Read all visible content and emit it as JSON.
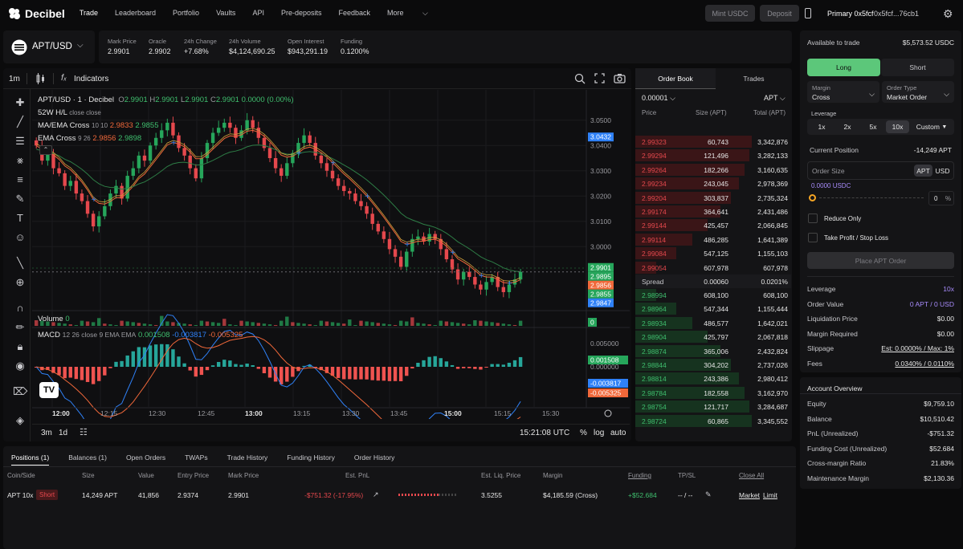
{
  "brand": {
    "name": "Decibel"
  },
  "nav": {
    "items": [
      "Trade",
      "Leaderboard",
      "Portfolio",
      "Vaults",
      "API",
      "Pre-deposits",
      "Feedback",
      "More"
    ]
  },
  "header": {
    "mint_label": "Mint USDC",
    "deposit_label": "Deposit",
    "account_label": "Primary 0x5fcf",
    "account_addr": "0x5fcf...76cb1"
  },
  "market": {
    "pair": "APT/USD",
    "stats": [
      {
        "label": "Mark Price",
        "value": "2.9901"
      },
      {
        "label": "Oracle",
        "value": "2.9902"
      },
      {
        "label": "24h Change",
        "value": "+7.68%"
      },
      {
        "label": "24h Volume",
        "value": "$4,124,690.25"
      },
      {
        "label": "Open Interest",
        "value": "$943,291.19"
      },
      {
        "label": "Funding",
        "value": "0.1200%"
      }
    ]
  },
  "chart_toolbar": {
    "interval": "1m",
    "indicators_label": "Indicators"
  },
  "chart": {
    "legend_title": "APT/USD · 1 · Decibel",
    "ohlc": {
      "o": "2.9901",
      "h": "2.9901",
      "l": "2.9901",
      "c": "2.9901",
      "chg": "0.0000 (0.00%)"
    },
    "hl52": "52W H/L",
    "hl52_sub": "close close",
    "ma_label": "MA/EMA Cross",
    "ma_params": "10 10",
    "ma_v1": "2.9833",
    "ma_v2": "2.9855",
    "ema_label": "EMA Cross",
    "ema_params": "9 26",
    "ema_v1": "2.9856",
    "ema_v2": "2.9898",
    "volume_label": "Volume",
    "volume_value": "0",
    "macd_label": "MACD",
    "macd_params": "12 26 close 9 EMA EMA",
    "macd_v1": "0.001508",
    "macd_v2": "-0.003817",
    "macd_v3": "-0.005325",
    "price_ticks": [
      "3.0500",
      "3.0400",
      "3.0300",
      "3.0200",
      "3.0100",
      "3.0000"
    ],
    "macd_ticks": [
      "0.005000",
      "0.000000"
    ],
    "time_ticks": [
      "12:00",
      "12:15",
      "12:30",
      "12:45",
      "13:00",
      "13:15",
      "13:30",
      "13:45",
      "15:00",
      "15:15",
      "15:30"
    ],
    "price_labels": [
      {
        "v": "3.0432",
        "c": "#2f81f7"
      },
      {
        "v": "2.9901",
        "c": "#26a65b"
      },
      {
        "v": "2.9895",
        "c": "#26a65b"
      },
      {
        "v": "2.9856",
        "c": "#f0683a"
      },
      {
        "v": "2.9855",
        "c": "#26a65b"
      },
      {
        "v": "2.9847",
        "c": "#2f81f7"
      }
    ],
    "vol_badge": "0",
    "macd_labels": [
      {
        "v": "0.001508",
        "c": "#26a65b"
      },
      {
        "v": "-0.003817",
        "c": "#2f81f7"
      },
      {
        "v": "-0.005325",
        "c": "#f0683a"
      }
    ],
    "ranges": [
      "3m",
      "1d"
    ],
    "clock": "15:21:08 UTC",
    "scale_opts": [
      "%",
      "log",
      "auto"
    ]
  },
  "chart_data": {
    "type": "candlestick",
    "x_range": [
      "11:55",
      "15:32"
    ],
    "y_range": [
      2.975,
      3.055
    ],
    "closes": [
      3.04,
      3.034,
      3.037,
      3.031,
      3.029,
      3.024,
      3.026,
      3.021,
      3.018,
      3.013,
      3.008,
      3.012,
      3.016,
      3.021,
      3.024,
      3.019,
      3.028,
      3.031,
      3.036,
      3.034,
      3.04,
      3.043,
      3.046,
      3.049,
      3.044,
      3.039,
      3.036,
      3.031,
      3.027,
      3.035,
      3.041,
      3.045,
      3.047,
      3.049,
      3.047,
      3.043,
      3.046,
      3.05,
      3.047,
      3.043,
      3.039,
      3.035,
      3.031,
      3.028,
      3.033,
      3.037,
      3.041,
      3.044,
      3.041,
      3.036,
      3.033,
      3.03,
      3.027,
      3.024,
      3.022,
      3.021,
      3.018,
      3.016,
      3.013,
      3.009,
      3.006,
      3.003,
      2.999,
      2.996,
      2.992,
      2.998,
      3.003,
      3.004,
      3.002,
      3.005,
      3.003,
      2.999,
      2.995,
      2.991,
      2.987,
      2.99,
      2.988,
      2.985,
      2.983,
      2.986,
      2.988,
      2.984,
      2.982,
      2.985,
      2.987,
      2.99
    ]
  },
  "orderbook": {
    "tabs": [
      "Order Book",
      "Trades"
    ],
    "tick": "0.00001",
    "unit": "APT",
    "headers": [
      "Price",
      "Size (APT)",
      "Total (APT)"
    ],
    "asks": [
      {
        "p": "2.99323",
        "s": "60,743",
        "t": "3,342,876",
        "d": 1.0
      },
      {
        "p": "2.99294",
        "s": "121,496",
        "t": "3,282,133",
        "d": 0.98
      },
      {
        "p": "2.99264",
        "s": "182,266",
        "t": "3,160,635",
        "d": 0.94
      },
      {
        "p": "2.99234",
        "s": "243,045",
        "t": "2,978,369",
        "d": 0.89
      },
      {
        "p": "2.99204",
        "s": "303,837",
        "t": "2,735,324",
        "d": 0.82
      },
      {
        "p": "2.99174",
        "s": "364,641",
        "t": "2,431,486",
        "d": 0.73
      },
      {
        "p": "2.99144",
        "s": "425,457",
        "t": "2,066,845",
        "d": 0.62
      },
      {
        "p": "2.99114",
        "s": "486,285",
        "t": "1,641,389",
        "d": 0.49
      },
      {
        "p": "2.99084",
        "s": "547,125",
        "t": "1,155,103",
        "d": 0.35
      },
      {
        "p": "2.99054",
        "s": "607,978",
        "t": "607,978",
        "d": 0.18
      }
    ],
    "spread_label": "Spread",
    "spread_value": "0.00060",
    "spread_pct": "0.0201%",
    "bids": [
      {
        "p": "2.98994",
        "s": "608,100",
        "t": "608,100",
        "d": 0.18
      },
      {
        "p": "2.98964",
        "s": "547,344",
        "t": "1,155,444",
        "d": 0.35
      },
      {
        "p": "2.98934",
        "s": "486,577",
        "t": "1,642,021",
        "d": 0.49
      },
      {
        "p": "2.98904",
        "s": "425,797",
        "t": "2,067,818",
        "d": 0.62
      },
      {
        "p": "2.98874",
        "s": "365,006",
        "t": "2,432,824",
        "d": 0.73
      },
      {
        "p": "2.98844",
        "s": "304,202",
        "t": "2,737,026",
        "d": 0.82
      },
      {
        "p": "2.98814",
        "s": "243,386",
        "t": "2,980,412",
        "d": 0.89
      },
      {
        "p": "2.98784",
        "s": "182,558",
        "t": "3,162,970",
        "d": 0.94
      },
      {
        "p": "2.98754",
        "s": "121,717",
        "t": "3,284,687",
        "d": 0.98
      },
      {
        "p": "2.98724",
        "s": "60,865",
        "t": "3,345,552",
        "d": 1.0
      }
    ]
  },
  "trade": {
    "available_label": "Available to trade",
    "available_value": "$5,573.52 USDC",
    "long_label": "Long",
    "short_label": "Short",
    "margin_label": "Margin",
    "margin_value": "Cross",
    "order_type_label": "Order Type",
    "order_type_value": "Market Order",
    "leverage_label": "Leverage",
    "leverage_opts": [
      "1x",
      "2x",
      "5x",
      "10x"
    ],
    "leverage_custom": "Custom",
    "position_label": "Current Position",
    "position_value": "-14,249 APT",
    "size_placeholder": "Order Size",
    "size_unit_a": "APT",
    "size_unit_b": "USD",
    "size_usdc": "0.0000 USDC",
    "slider_pct": "0",
    "slider_unit": "%",
    "reduce_only": "Reduce Only",
    "tpsl": "Take Profit / Stop Loss",
    "place_label": "Place APT Order",
    "summary": [
      {
        "k": "Leverage",
        "v": "10x",
        "c": "purple",
        "u": false
      },
      {
        "k": "Order Value",
        "v": "0 APT / 0 USD",
        "c": "purple",
        "u": false
      },
      {
        "k": "Liquidation Price",
        "v": "$0.00",
        "c": "",
        "u": false
      },
      {
        "k": "Margin Required",
        "v": "$0.00",
        "c": "",
        "u": false
      },
      {
        "k": "Slippage",
        "v": "Est: 0.0000% / Max: 1%",
        "c": "",
        "u": true
      },
      {
        "k": "Fees",
        "v": "0.0340% / 0.0110%",
        "c": "",
        "u": true
      }
    ]
  },
  "account": {
    "title": "Account Overview",
    "rows": [
      {
        "k": "Equity",
        "v": "$9,759.10"
      },
      {
        "k": "Balance",
        "v": "$10,510.42"
      },
      {
        "k": "PnL (Unrealized)",
        "v": "-$751.32"
      },
      {
        "k": "Funding Cost (Unrealized)",
        "v": "$52.684"
      },
      {
        "k": "Cross-margin Ratio",
        "v": "21.83%"
      },
      {
        "k": "Maintenance Margin",
        "v": "$2,130.36"
      }
    ]
  },
  "positions": {
    "tabs": [
      "Positions (1)",
      "Balances (1)",
      "Open Orders",
      "TWAPs",
      "Trade History",
      "Funding History",
      "Order History"
    ],
    "headers": [
      "Coin/Side",
      "Size",
      "Value",
      "Entry Price",
      "Mark Price",
      "Est. PnL",
      "Est. Liq. Price",
      "Margin",
      "Funding",
      "TP/SL",
      "Close All"
    ],
    "row": {
      "coin": "APT 10x",
      "side": "Short",
      "size": "14,249 APT",
      "value": "41,856",
      "entry": "2.9374",
      "mark": "2.9901",
      "pnl": "-$751.32 (-17.95%)",
      "liq": "3.5255",
      "margin": "$4,185.59 (Cross)",
      "funding": "+$52.684",
      "tpsl": "-- / --",
      "market": "Market",
      "limit": "Limit"
    }
  },
  "theme": {
    "green": "#3fbf6e",
    "red": "#e5484d",
    "accent": "#a78bfa",
    "long_bg": "#5cc77a"
  }
}
